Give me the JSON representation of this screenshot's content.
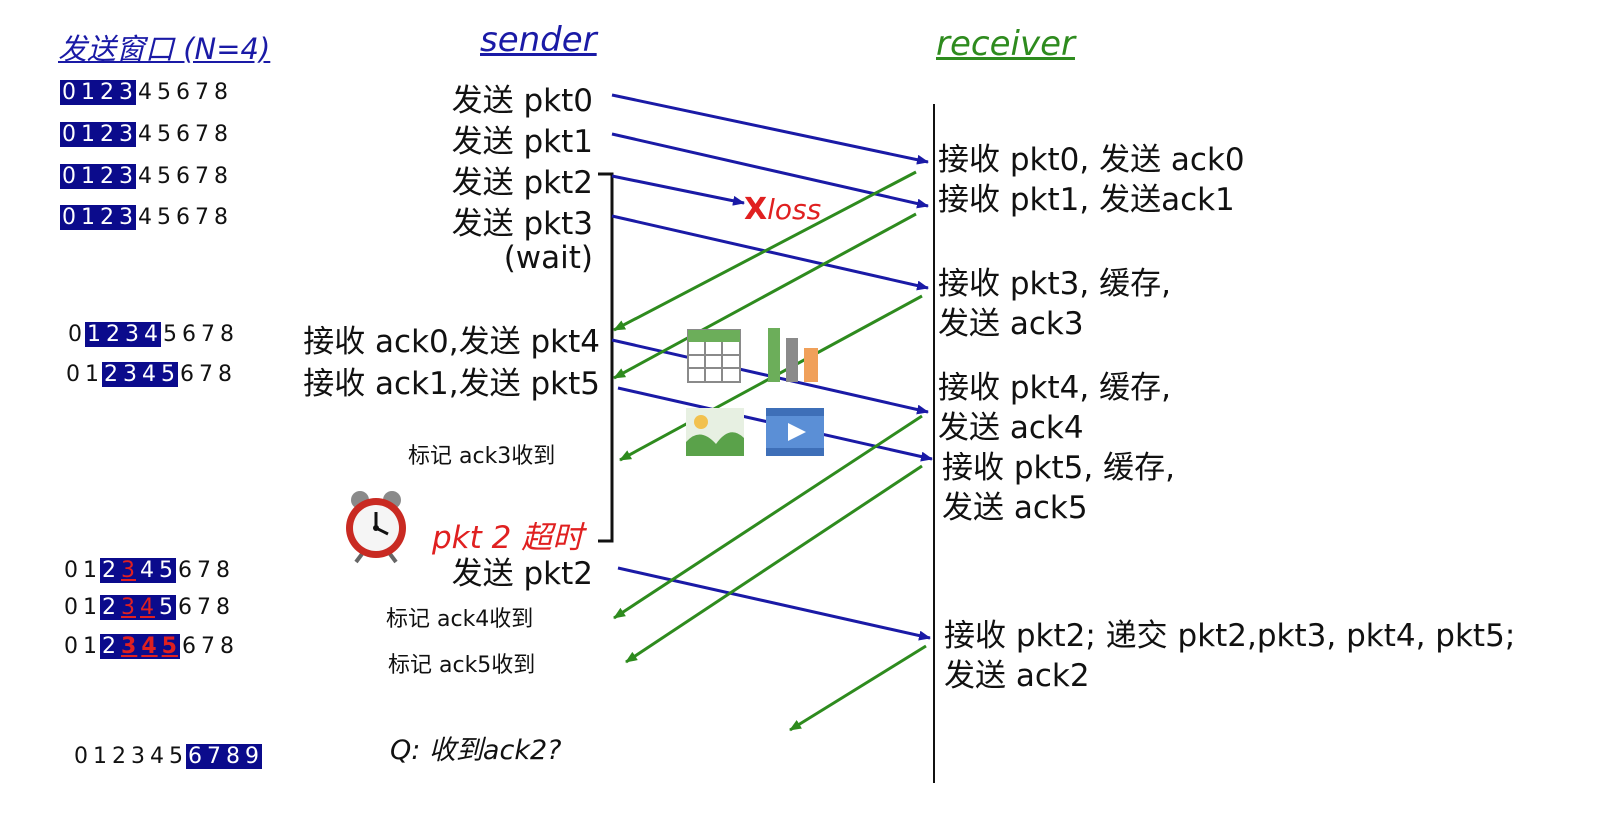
{
  "headers": {
    "window": "发送窗口 (N=4)",
    "sender": "sender",
    "receiver": "receiver"
  },
  "window_rows": [
    {
      "digits": [
        "0",
        "1",
        "2",
        "3",
        "4",
        "5",
        "6",
        "7",
        "8"
      ],
      "hl": [
        0,
        1,
        2,
        3
      ],
      "red": [],
      "bold": []
    },
    {
      "digits": [
        "0",
        "1",
        "2",
        "3",
        "4",
        "5",
        "6",
        "7",
        "8"
      ],
      "hl": [
        0,
        1,
        2,
        3
      ],
      "red": [],
      "bold": []
    },
    {
      "digits": [
        "0",
        "1",
        "2",
        "3",
        "4",
        "5",
        "6",
        "7",
        "8"
      ],
      "hl": [
        0,
        1,
        2,
        3
      ],
      "red": [],
      "bold": []
    },
    {
      "digits": [
        "0",
        "1",
        "2",
        "3",
        "4",
        "5",
        "6",
        "7",
        "8"
      ],
      "hl": [
        0,
        1,
        2,
        3
      ],
      "red": [],
      "bold": []
    },
    {
      "digits": [
        "0",
        "1",
        "2",
        "3",
        "4",
        "5",
        "6",
        "7",
        "8"
      ],
      "hl": [
        1,
        2,
        3,
        4
      ],
      "red": [],
      "bold": []
    },
    {
      "digits": [
        "0",
        "1",
        "2",
        "3",
        "4",
        "5",
        "6",
        "7",
        "8"
      ],
      "hl": [
        2,
        3,
        4,
        5
      ],
      "red": [],
      "bold": []
    },
    {
      "digits": [
        "0",
        "1",
        "2",
        "3",
        "4",
        "5",
        "6",
        "7",
        "8"
      ],
      "hl": [
        2,
        3,
        4,
        5
      ],
      "red": [
        3
      ],
      "bold": []
    },
    {
      "digits": [
        "0",
        "1",
        "2",
        "3",
        "4",
        "5",
        "6",
        "7",
        "8"
      ],
      "hl": [
        2,
        3,
        4,
        5
      ],
      "red": [
        3,
        4
      ],
      "bold": []
    },
    {
      "digits": [
        "0",
        "1",
        "2",
        "3",
        "4",
        "5",
        "6",
        "7",
        "8"
      ],
      "hl": [
        2,
        3,
        4,
        5
      ],
      "red": [
        3,
        4,
        5
      ],
      "bold": [
        3,
        4,
        5
      ]
    },
    {
      "digits": [
        "0",
        "1",
        "2",
        "3",
        "4",
        "5",
        "6",
        "7",
        "8",
        "9"
      ],
      "hl": [
        6,
        7,
        8,
        9
      ],
      "red": [],
      "bold": []
    }
  ],
  "sender": {
    "send_pkt0": "发送  pkt0",
    "send_pkt1": "发送  pkt1",
    "send_pkt2": "发送  pkt2",
    "send_pkt3": "发送  pkt3",
    "wait": "(wait)",
    "recv_ack0": "接收 ack0,发送 pkt4",
    "recv_ack1": "接收 ack1,发送 pkt5",
    "mark_ack3": "标记 ack3收到",
    "timeout": "pkt 2 超时",
    "resend_pkt2": "发送 pkt2",
    "mark_ack4": "标记 ack4收到",
    "mark_ack5": "标记 ack5收到",
    "question": "Q: 收到ack2?"
  },
  "receiver": {
    "r1": "接收 pkt0, 发送 ack0",
    "r2": "接收 pkt1, 发送ack1",
    "r3a": "接收 pkt3, 缓存,",
    "r3b": "发送 ack3",
    "r4a": "接收 pkt4, 缓存,",
    "r4b": "发送 ack4",
    "r5a": "接收 pkt5, 缓存,",
    "r5b": "发送 ack5",
    "r6a": "接收 pkt2; 递交 pkt2,pkt3, pkt4, pkt5;",
    "r6b": "发送 ack2"
  },
  "loss": {
    "x": "X",
    "text": "loss"
  },
  "colors": {
    "data_arrow": "#1a1aa6",
    "ack_arrow": "#2e8b1e",
    "window_fill": "#0b0b8c",
    "highlight_red": "#e02020"
  },
  "icons": [
    "alarm-clock-icon",
    "table-icon",
    "bar-chart-icon",
    "image-icon",
    "video-icon"
  ]
}
